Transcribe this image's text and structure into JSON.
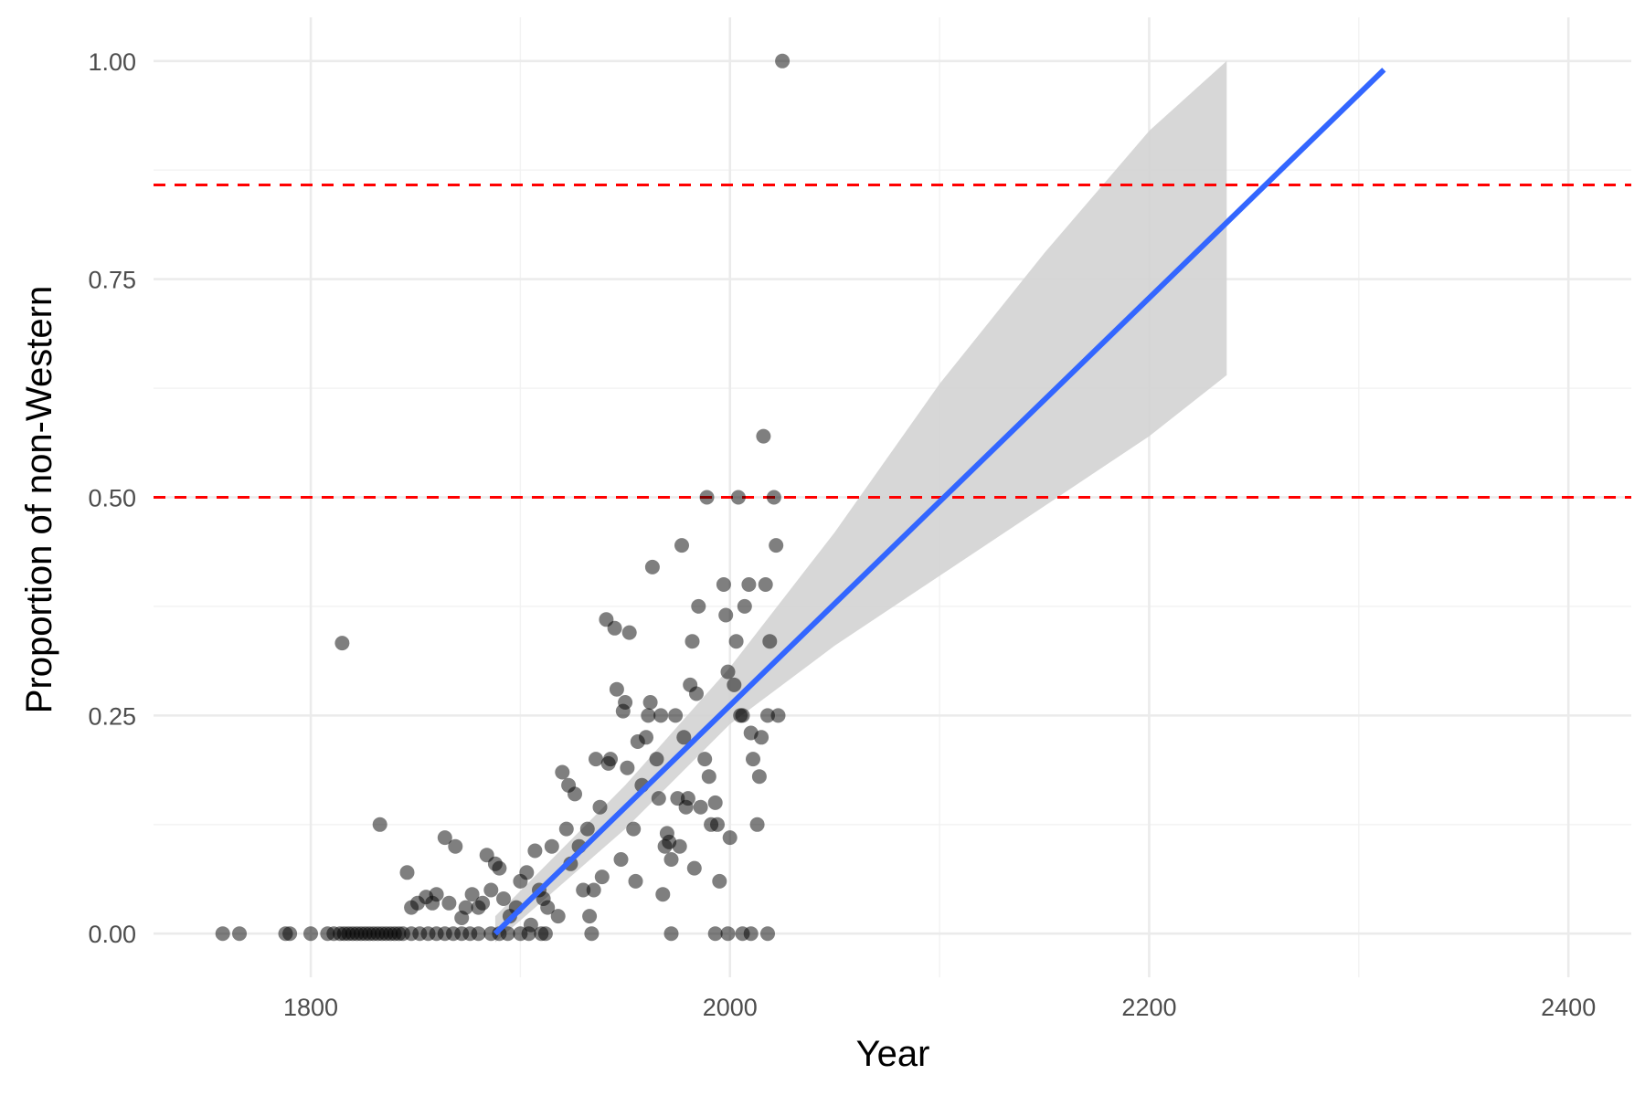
{
  "chart_data": {
    "type": "scatter",
    "xlabel": "Year",
    "ylabel": "Proportion of non-Western",
    "xlim": [
      1725,
      2430
    ],
    "ylim": [
      -0.05,
      1.05
    ],
    "x_ticks": [
      1800,
      2000,
      2200,
      2400
    ],
    "x_tick_labels": [
      "1800",
      "2000",
      "2200",
      "2400"
    ],
    "y_ticks": [
      0,
      0.25,
      0.5,
      0.75,
      1
    ],
    "y_tick_labels": [
      "0.00",
      "0.25",
      "0.50",
      "0.75",
      "1.00"
    ],
    "grid": true,
    "point_color": "#000000",
    "point_opacity": 0.5,
    "hlines": [
      {
        "y": 0.5,
        "color": "#ff0000",
        "style": "dashed"
      },
      {
        "y": 0.858,
        "color": "#ff0000",
        "style": "dashed"
      }
    ],
    "trend_line": {
      "color": "#3366ff",
      "x": [
        1888,
        2312
      ],
      "y": [
        0.0,
        0.99
      ]
    },
    "confidence_band": {
      "color": "#d3d3d3",
      "x": [
        1888,
        1950,
        2000,
        2050,
        2100,
        2150,
        2200,
        2237
      ],
      "upper": [
        0.02,
        0.17,
        0.305,
        0.46,
        0.63,
        0.78,
        0.92,
        1.0
      ],
      "lower": [
        -0.01,
        0.12,
        0.24,
        0.33,
        0.41,
        0.49,
        0.57,
        0.64
      ]
    },
    "points": [
      [
        1758,
        0
      ],
      [
        1766,
        0
      ],
      [
        1788,
        0
      ],
      [
        1790,
        0
      ],
      [
        1800,
        0
      ],
      [
        1808,
        0
      ],
      [
        1811,
        0
      ],
      [
        1814,
        0
      ],
      [
        1816,
        0
      ],
      [
        1818,
        0
      ],
      [
        1820,
        0
      ],
      [
        1822,
        0
      ],
      [
        1824,
        0
      ],
      [
        1826,
        0
      ],
      [
        1828,
        0
      ],
      [
        1830,
        0
      ],
      [
        1832,
        0
      ],
      [
        1834,
        0
      ],
      [
        1836,
        0
      ],
      [
        1838,
        0
      ],
      [
        1840,
        0
      ],
      [
        1842,
        0
      ],
      [
        1844,
        0
      ],
      [
        1848,
        0
      ],
      [
        1852,
        0
      ],
      [
        1856,
        0
      ],
      [
        1860,
        0
      ],
      [
        1864,
        0
      ],
      [
        1868,
        0
      ],
      [
        1872,
        0
      ],
      [
        1876,
        0
      ],
      [
        1880,
        0
      ],
      [
        1886,
        0
      ],
      [
        1890,
        0
      ],
      [
        1894,
        0
      ],
      [
        1900,
        0
      ],
      [
        1904,
        0
      ],
      [
        1910,
        0
      ],
      [
        1912,
        0
      ],
      [
        1934,
        0
      ],
      [
        1972,
        0
      ],
      [
        1993,
        0
      ],
      [
        1999,
        0
      ],
      [
        2006,
        0
      ],
      [
        2010,
        0
      ],
      [
        2018,
        0
      ],
      [
        1815,
        0.333
      ],
      [
        1833,
        0.125
      ],
      [
        1846,
        0.07
      ],
      [
        1848,
        0.03
      ],
      [
        1851,
        0.035
      ],
      [
        1855,
        0.042
      ],
      [
        1858,
        0.035
      ],
      [
        1860,
        0.045
      ],
      [
        1864,
        0.11
      ],
      [
        1866,
        0.035
      ],
      [
        1869,
        0.1
      ],
      [
        1872,
        0.018
      ],
      [
        1874,
        0.03
      ],
      [
        1877,
        0.045
      ],
      [
        1880,
        0.03
      ],
      [
        1882,
        0.035
      ],
      [
        1884,
        0.09
      ],
      [
        1886,
        0.05
      ],
      [
        1888,
        0.08
      ],
      [
        1890,
        0.075
      ],
      [
        1892,
        0.04
      ],
      [
        1895,
        0.02
      ],
      [
        1898,
        0.03
      ],
      [
        1900,
        0.06
      ],
      [
        1903,
        0.07
      ],
      [
        1905,
        0.01
      ],
      [
        1907,
        0.095
      ],
      [
        1909,
        0.05
      ],
      [
        1911,
        0.04
      ],
      [
        1913,
        0.03
      ],
      [
        1915,
        0.1
      ],
      [
        1918,
        0.02
      ],
      [
        1920,
        0.185
      ],
      [
        1922,
        0.12
      ],
      [
        1923,
        0.17
      ],
      [
        1924,
        0.08
      ],
      [
        1926,
        0.16
      ],
      [
        1928,
        0.1
      ],
      [
        1930,
        0.05
      ],
      [
        1932,
        0.12
      ],
      [
        1933,
        0.02
      ],
      [
        1935,
        0.05
      ],
      [
        1936,
        0.2
      ],
      [
        1938,
        0.145
      ],
      [
        1939,
        0.065
      ],
      [
        1941,
        0.36
      ],
      [
        1942,
        0.195
      ],
      [
        1943,
        0.2
      ],
      [
        1945,
        0.35
      ],
      [
        1946,
        0.28
      ],
      [
        1948,
        0.085
      ],
      [
        1949,
        0.255
      ],
      [
        1950,
        0.265
      ],
      [
        1951,
        0.19
      ],
      [
        1952,
        0.345
      ],
      [
        1954,
        0.12
      ],
      [
        1955,
        0.06
      ],
      [
        1956,
        0.22
      ],
      [
        1958,
        0.17
      ],
      [
        1960,
        0.225
      ],
      [
        1961,
        0.25
      ],
      [
        1962,
        0.265
      ],
      [
        1963,
        0.42
      ],
      [
        1965,
        0.2
      ],
      [
        1966,
        0.155
      ],
      [
        1967,
        0.25
      ],
      [
        1968,
        0.045
      ],
      [
        1969,
        0.1
      ],
      [
        1970,
        0.115
      ],
      [
        1971,
        0.105
      ],
      [
        1972,
        0.085
      ],
      [
        1974,
        0.25
      ],
      [
        1975,
        0.155
      ],
      [
        1976,
        0.1
      ],
      [
        1977,
        0.445
      ],
      [
        1978,
        0.225
      ],
      [
        1979,
        0.145
      ],
      [
        1980,
        0.155
      ],
      [
        1981,
        0.285
      ],
      [
        1982,
        0.335
      ],
      [
        1983,
        0.075
      ],
      [
        1984,
        0.275
      ],
      [
        1985,
        0.375
      ],
      [
        1986,
        0.145
      ],
      [
        1988,
        0.2
      ],
      [
        1989,
        0.5
      ],
      [
        1990,
        0.18
      ],
      [
        1991,
        0.125
      ],
      [
        1993,
        0.15
      ],
      [
        1994,
        0.125
      ],
      [
        1995,
        0.06
      ],
      [
        1997,
        0.4
      ],
      [
        1998,
        0.365
      ],
      [
        1999,
        0.3
      ],
      [
        2000,
        0.11
      ],
      [
        2002,
        0.285
      ],
      [
        2003,
        0.335
      ],
      [
        2004,
        0.5
      ],
      [
        2005,
        0.25
      ],
      [
        2006,
        0.25
      ],
      [
        2007,
        0.375
      ],
      [
        2009,
        0.4
      ],
      [
        2010,
        0.23
      ],
      [
        2011,
        0.2
      ],
      [
        2013,
        0.125
      ],
      [
        2014,
        0.18
      ],
      [
        2015,
        0.225
      ],
      [
        2016,
        0.57
      ],
      [
        2017,
        0.4
      ],
      [
        2018,
        0.25
      ],
      [
        2019,
        0.335
      ],
      [
        2021,
        0.5
      ],
      [
        2022,
        0.445
      ],
      [
        2023,
        0.25
      ],
      [
        2025,
        1.0
      ]
    ]
  }
}
